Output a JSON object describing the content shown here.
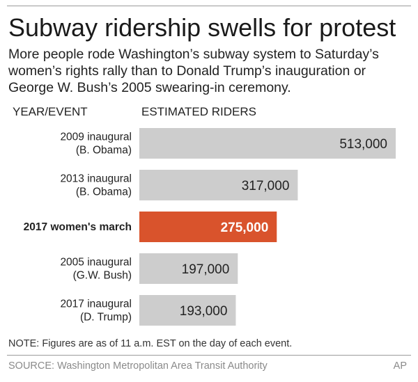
{
  "header": {
    "title": "Subway ridership swells for protest",
    "subtitle": "More people rode Washington’s subway system to Saturday’s women’s rights rally than to Donald Trump’s inauguration or George W. Bush’s 2005 swearing-in ceremony."
  },
  "columns": {
    "left": "YEAR/EVENT",
    "right": "ESTIMATED RIDERS"
  },
  "chart_data": {
    "type": "bar",
    "orientation": "horizontal",
    "title": "Subway ridership swells for protest",
    "xlabel": "ESTIMATED RIDERS",
    "ylabel": "YEAR/EVENT",
    "xlim": [
      0,
      513000
    ],
    "categories": [
      [
        "2009 inaugural",
        "(B. Obama)"
      ],
      [
        "2013 inaugural",
        "(B. Obama)"
      ],
      [
        "2017 women's march"
      ],
      [
        "2005 inaugural",
        "(G.W. Bush)"
      ],
      [
        "2017 inaugural",
        "(D. Trump)"
      ]
    ],
    "values": [
      513000,
      317000,
      275000,
      197000,
      193000
    ],
    "value_labels": [
      "513,000",
      "317,000",
      "275,000",
      "197,000",
      "193,000"
    ],
    "highlight_index": 2,
    "colors": {
      "bar": "#cdcdcd",
      "highlight": "#d9532c",
      "label_text": "#222222",
      "highlight_text": "#ffffff"
    }
  },
  "footer": {
    "note": "NOTE: Figures are as of 11 a.m. EST on the day of each event.",
    "source": "SOURCE: Washington Metropolitan Area Transit Authority",
    "credit": "AP"
  }
}
